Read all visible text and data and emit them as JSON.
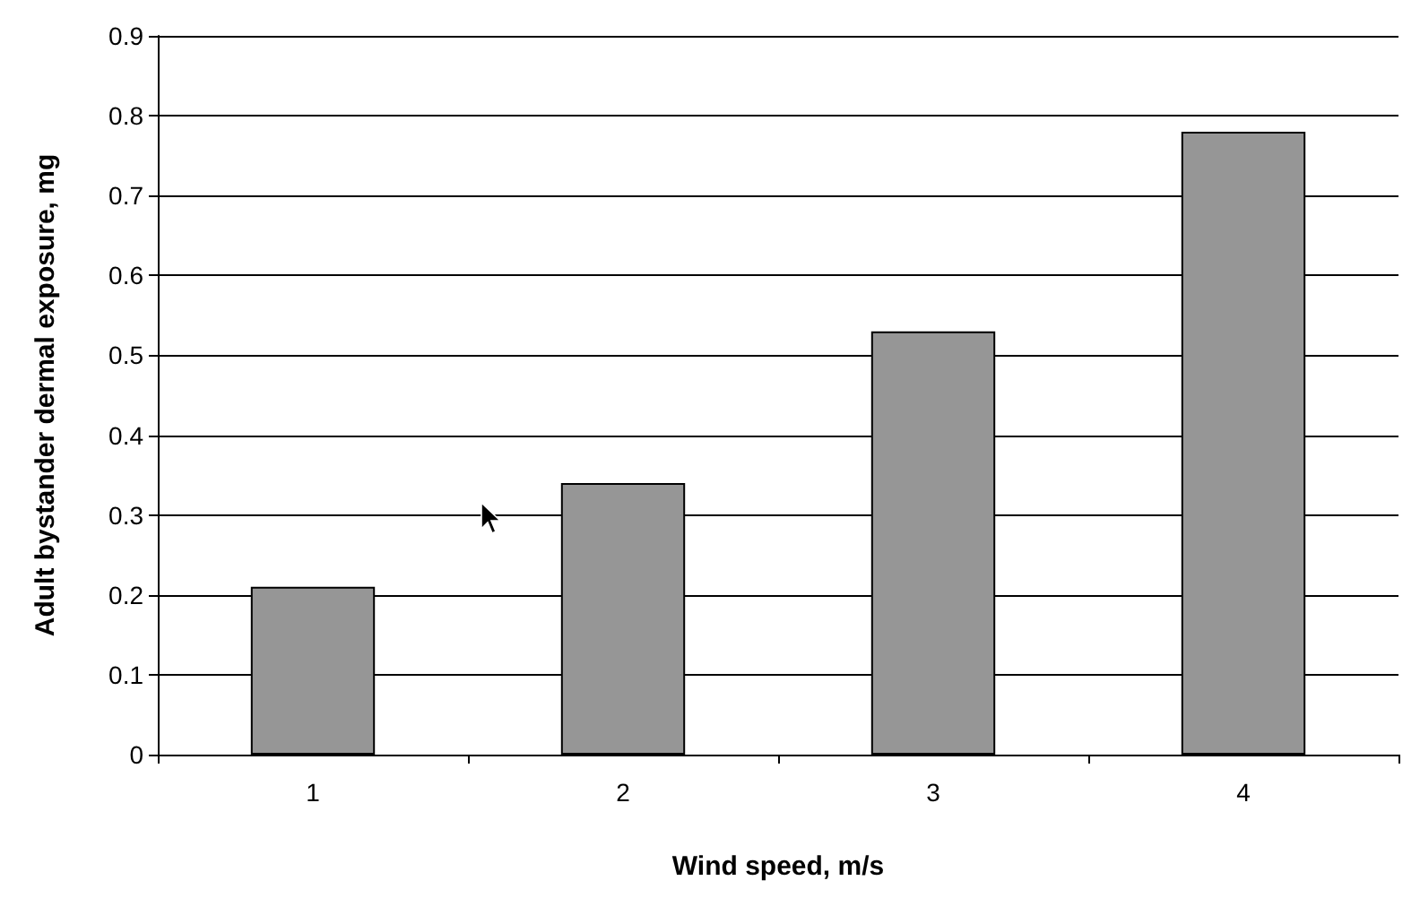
{
  "chart_data": {
    "type": "bar",
    "xlabel": "Wind speed, m/s",
    "ylabel": "Adult bystander dermal exposure, mg",
    "categories": [
      "1",
      "2",
      "3",
      "4"
    ],
    "values": [
      0.21,
      0.34,
      0.53,
      0.78
    ],
    "color": "#969696",
    "ylim": [
      0,
      0.9
    ],
    "yticks": [
      0,
      0.1,
      0.2,
      0.3,
      0.4,
      0.5,
      0.6,
      0.7,
      0.8,
      0.9
    ],
    "grid": "y"
  }
}
